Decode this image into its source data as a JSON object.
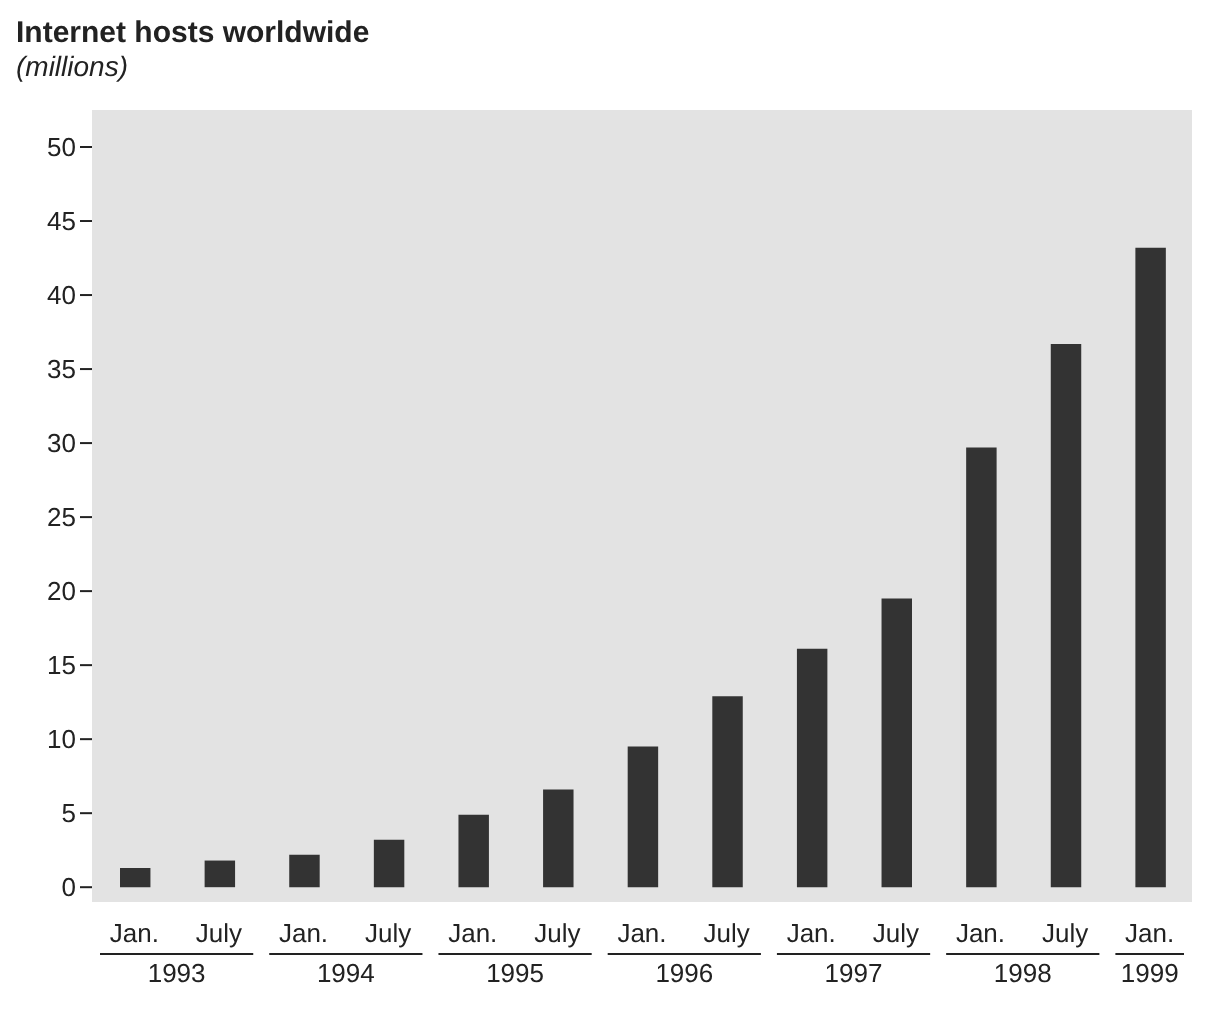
{
  "chart_data": {
    "type": "bar",
    "title": "Internet hosts worldwide",
    "subtitle": "(millions)",
    "categories": [
      "Jan.",
      "July",
      "Jan.",
      "July",
      "Jan.",
      "July",
      "Jan.",
      "July",
      "Jan.",
      "July",
      "Jan.",
      "July",
      "Jan."
    ],
    "values": [
      1.3,
      1.8,
      2.2,
      3.2,
      4.9,
      6.6,
      9.5,
      12.9,
      16.1,
      19.5,
      29.7,
      36.7,
      43.2
    ],
    "color": "#333333",
    "annotations": [
      "1993",
      "1994",
      "1995",
      "1996",
      "1997",
      "1998",
      "1999"
    ],
    "ylim": [
      -1,
      52.5
    ],
    "yticks": [
      0,
      5,
      10,
      15,
      20,
      25,
      30,
      35,
      40,
      45,
      50
    ],
    "grid": false
  }
}
